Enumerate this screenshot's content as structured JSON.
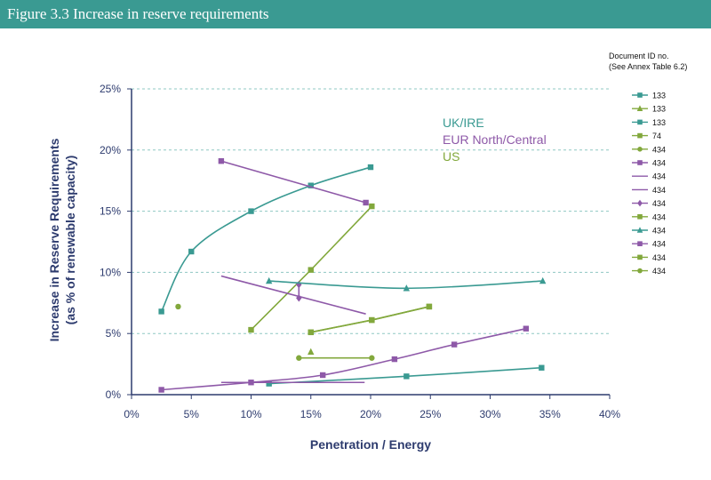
{
  "header": {
    "title": "Figure 3.3 Increase in reserve requirements"
  },
  "colors": {
    "teal": "#3a9a92",
    "purple": "#8e59a8",
    "green": "#82a83c",
    "axis": "#2d3b6e"
  },
  "chart_data": {
    "type": "scatter",
    "xlabel": "Penetration / Energy",
    "ylabel_lines": [
      "Increase in Reserve Requirements",
      "(as % of renewable capacity)"
    ],
    "xlim": [
      0,
      40
    ],
    "ylim": [
      0,
      25
    ],
    "x_ticks": [
      0,
      5,
      10,
      15,
      20,
      25,
      30,
      35,
      40
    ],
    "y_ticks": [
      0,
      5,
      10,
      15,
      20,
      25
    ],
    "x_tick_labels": [
      "0%",
      "5%",
      "10%",
      "15%",
      "20%",
      "25%",
      "30%",
      "35%",
      "40%"
    ],
    "y_tick_labels": [
      "0%",
      "5%",
      "10%",
      "15%",
      "20%",
      "25%"
    ],
    "grid": "horizontal dashed",
    "legend_position": "right",
    "legend_title_lines": [
      "Document ID no.",
      "(See Annex Table 6.2)"
    ],
    "annotations": [
      {
        "text": "UK/IRE",
        "color": "teal"
      },
      {
        "text": "EUR North/Central",
        "color": "purple"
      },
      {
        "text": "US",
        "color": "green"
      }
    ],
    "series": [
      {
        "name": "133",
        "color": "teal",
        "marker": "square",
        "curve": true,
        "points": [
          [
            2.5,
            6.8
          ],
          [
            5,
            11.7
          ],
          [
            10,
            15
          ],
          [
            15,
            17.1
          ],
          [
            20,
            18.6
          ]
        ]
      },
      {
        "name": "133",
        "color": "green",
        "marker": "triangle",
        "points": [
          [
            15,
            3.5
          ]
        ]
      },
      {
        "name": "133",
        "color": "teal",
        "marker": "square",
        "curve": true,
        "points": [
          [
            11.5,
            0.9
          ],
          [
            23,
            1.5
          ],
          [
            34.3,
            2.2
          ]
        ]
      },
      {
        "name": "74",
        "color": "green",
        "marker": "square",
        "points": [
          [
            10,
            5.3
          ],
          [
            15,
            10.2
          ],
          [
            20.1,
            15.4
          ]
        ]
      },
      {
        "name": "434",
        "color": "green",
        "marker": "circle",
        "points": [
          [
            3.9,
            7.2
          ]
        ]
      },
      {
        "name": "434",
        "color": "purple",
        "marker": "square",
        "points": [
          [
            7.5,
            19.1
          ],
          [
            19.6,
            15.7
          ]
        ]
      },
      {
        "name": "434",
        "color": "purple",
        "marker": "none",
        "points": [
          [
            7.5,
            9.7
          ],
          [
            19.6,
            6.6
          ]
        ]
      },
      {
        "name": "434",
        "color": "purple",
        "marker": "none",
        "points": [
          [
            7.5,
            1.0
          ],
          [
            19.5,
            1.0
          ]
        ]
      },
      {
        "name": "434",
        "color": "purple",
        "marker": "diamond",
        "points": [
          [
            14,
            9.0
          ],
          [
            14,
            7.9
          ]
        ]
      },
      {
        "name": "434",
        "color": "green",
        "marker": "square",
        "points": [
          [
            15,
            5.1
          ],
          [
            20.1,
            6.1
          ],
          [
            24.9,
            7.2
          ]
        ]
      },
      {
        "name": "434",
        "color": "teal",
        "marker": "triangle",
        "curve": true,
        "points": [
          [
            11.5,
            9.3
          ],
          [
            23,
            8.7
          ],
          [
            34.4,
            9.3
          ]
        ]
      },
      {
        "name": "434",
        "color": "purple",
        "marker": "square",
        "curve": true,
        "points": [
          [
            2.5,
            0.4
          ],
          [
            10,
            1.0
          ],
          [
            16,
            1.6
          ],
          [
            22,
            2.9
          ],
          [
            27,
            4.1
          ],
          [
            33,
            5.4
          ]
        ]
      },
      {
        "name": "434",
        "color": "green",
        "marker": "square",
        "points": [
          [
            15,
            5.1
          ],
          [
            20.1,
            6.1
          ],
          [
            24.9,
            7.2
          ]
        ]
      },
      {
        "name": "434",
        "color": "green",
        "marker": "circle",
        "points": [
          [
            14,
            3.0
          ],
          [
            20.1,
            3.0
          ]
        ]
      }
    ]
  }
}
